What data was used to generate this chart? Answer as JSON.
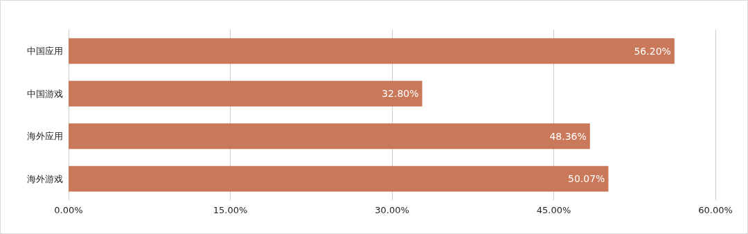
{
  "chart_data": {
    "type": "bar",
    "orientation": "horizontal",
    "categories": [
      "中国应用",
      "中国游戏",
      "海外应用",
      "海外游戏"
    ],
    "values": [
      56.2,
      32.8,
      48.36,
      50.07
    ],
    "color": "#c9785a",
    "value_labels": [
      "56.20%",
      "32.80%",
      "48.36%",
      "50.07%"
    ],
    "xlim": [
      0,
      60
    ],
    "xticks": [
      {
        "value": 0,
        "label": "0.00%"
      },
      {
        "value": 15,
        "label": "15.00%"
      },
      {
        "value": 30,
        "label": "30.00%"
      },
      {
        "value": 45,
        "label": "45.00%"
      },
      {
        "value": 60,
        "label": "60.00%"
      }
    ],
    "grid": "x"
  }
}
